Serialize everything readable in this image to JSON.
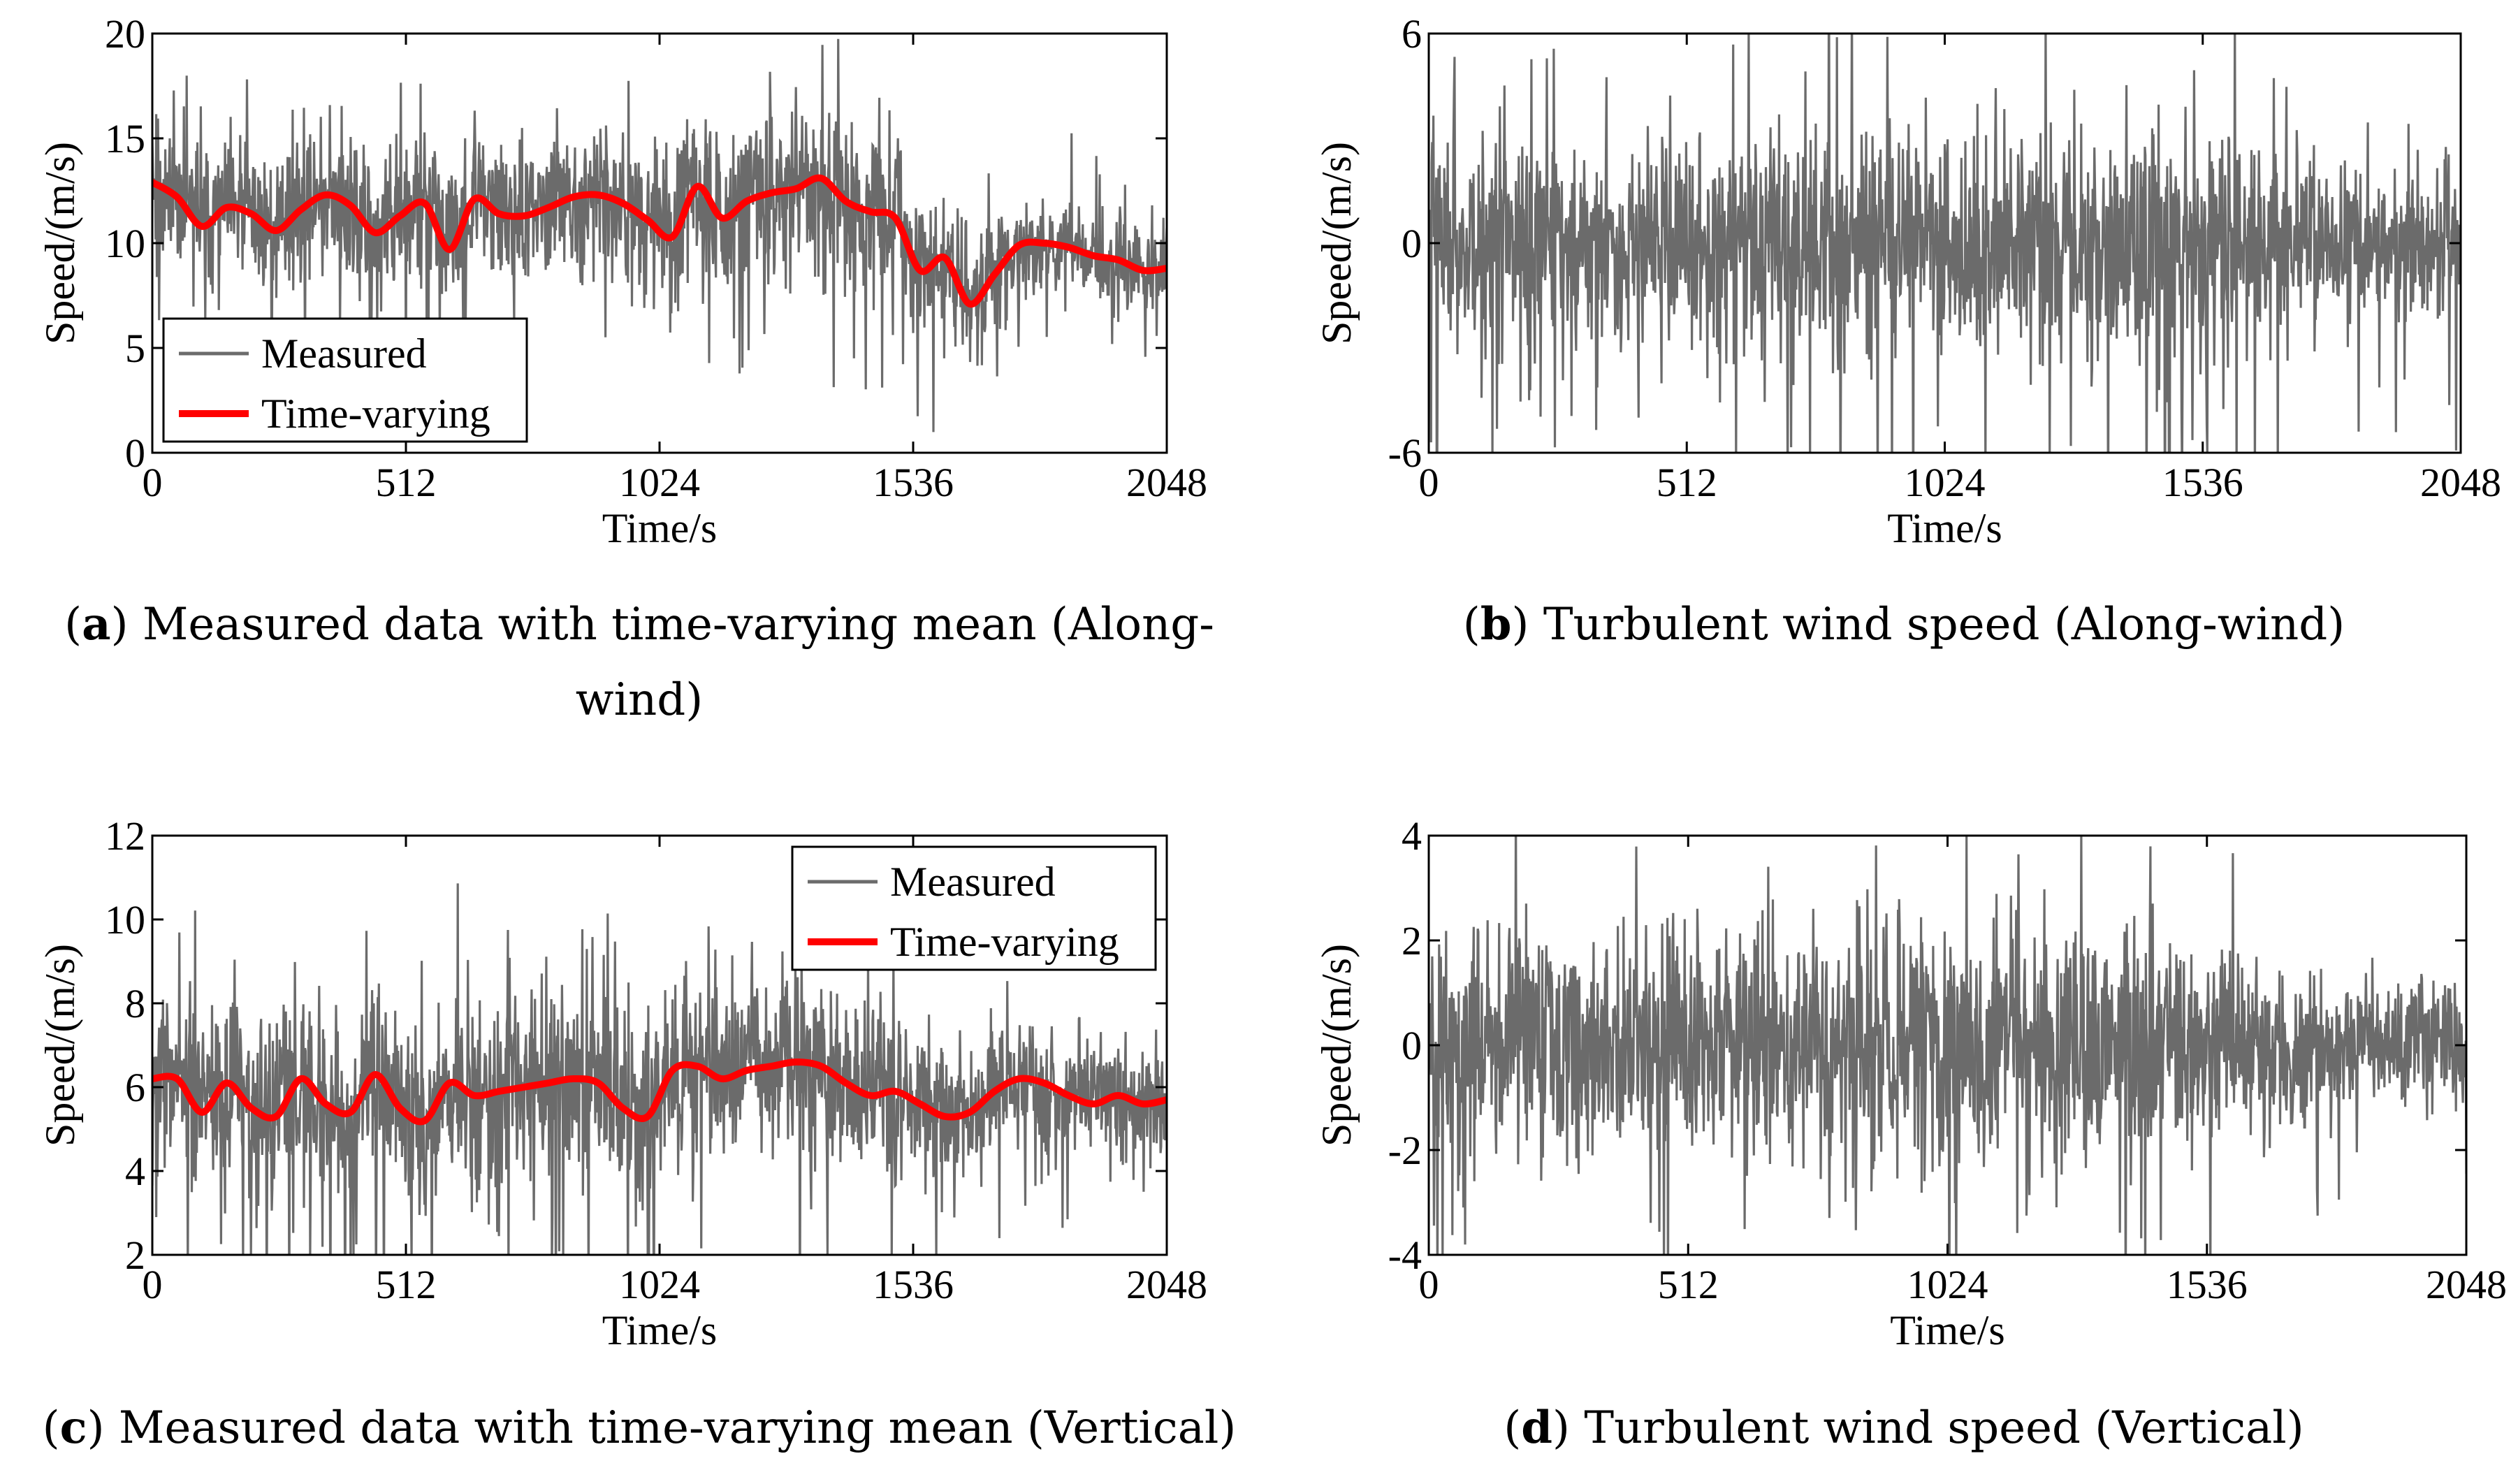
{
  "captions": {
    "a": {
      "letter": "a",
      "text": " Measured data with time-varying mean (Along-",
      "text2": "wind)"
    },
    "b": {
      "letter": "b",
      "text": " Turbulent wind speed (Along-wind)"
    },
    "c": {
      "letter": "c",
      "text": " Measured data with time-varying mean (Vertical)"
    },
    "d": {
      "letter": "d",
      "text": " Turbulent wind speed (Vertical)"
    }
  },
  "colors": {
    "measured": "#6b6b6b",
    "time_varying": "#ff0000",
    "axis": "#000000"
  },
  "chart_data": [
    {
      "id": "a",
      "type": "line",
      "xlabel": "Time/s",
      "ylabel": "Speed/(m/s)",
      "xlim": [
        0,
        2048
      ],
      "ylim": [
        0,
        20
      ],
      "xticks": [
        0,
        512,
        1024,
        1536,
        2048
      ],
      "yticks": [
        0,
        5,
        10,
        15,
        20
      ],
      "legend": {
        "position": "lower-left",
        "entries": [
          "Measured",
          "Time-varying"
        ]
      },
      "series": [
        {
          "name": "Measured",
          "kind": "noise",
          "seed": 11,
          "amp": 1.6,
          "spikes": 0.05,
          "spike_amp": 4.2,
          "envelope": [
            [
              0,
              1.1
            ],
            [
              200,
              1.0
            ],
            [
              900,
              1.0
            ],
            [
              1400,
              1.25
            ],
            [
              1750,
              0.65
            ],
            [
              2048,
              0.6
            ]
          ]
        },
        {
          "name": "Time-varying",
          "x": [
            0,
            50,
            100,
            150,
            200,
            250,
            300,
            350,
            400,
            450,
            500,
            550,
            600,
            650,
            700,
            750,
            800,
            850,
            900,
            950,
            1000,
            1050,
            1100,
            1150,
            1200,
            1250,
            1300,
            1350,
            1400,
            1450,
            1500,
            1550,
            1600,
            1650,
            1700,
            1750,
            1800,
            1850,
            1900,
            1950,
            2000,
            2048
          ],
          "y": [
            12.9,
            12.2,
            10.8,
            11.7,
            11.4,
            10.6,
            11.6,
            12.3,
            11.8,
            10.5,
            11.3,
            11.9,
            9.7,
            12.1,
            11.4,
            11.3,
            11.7,
            12.2,
            12.3,
            11.9,
            11.1,
            10.3,
            12.7,
            11.2,
            12.0,
            12.4,
            12.6,
            13.1,
            12.0,
            11.5,
            11.2,
            8.7,
            9.3,
            7.1,
            8.5,
            9.9,
            10.0,
            9.8,
            9.4,
            9.2,
            8.7,
            8.8
          ]
        }
      ]
    },
    {
      "id": "b",
      "type": "line",
      "xlabel": "Time/s",
      "ylabel": "Speed/(m/s)",
      "xlim": [
        0,
        2048
      ],
      "ylim": [
        -6,
        6
      ],
      "xticks": [
        0,
        512,
        1024,
        1536,
        2048
      ],
      "yticks": [
        -6,
        0,
        6
      ],
      "series": [
        {
          "name": "Turbulent",
          "kind": "noise",
          "seed": 23,
          "amp": 1.5,
          "spikes": 0.05,
          "spike_amp": 4.5,
          "envelope": [
            [
              0,
              1.1
            ],
            [
              250,
              0.8
            ],
            [
              900,
              1.0
            ],
            [
              1500,
              1.15
            ],
            [
              1700,
              0.7
            ],
            [
              2048,
              0.65
            ]
          ]
        }
      ]
    },
    {
      "id": "c",
      "type": "line",
      "xlabel": "Time/s",
      "ylabel": "Speed/(m/s)",
      "xlim": [
        0,
        2048
      ],
      "ylim": [
        2,
        12
      ],
      "xticks": [
        0,
        512,
        1024,
        1536,
        2048
      ],
      "yticks": [
        2,
        4,
        6,
        8,
        10,
        12
      ],
      "legend": {
        "position": "top-right",
        "entries": [
          "Measured",
          "Time-varying"
        ]
      },
      "series": [
        {
          "name": "Measured",
          "kind": "noise",
          "seed": 37,
          "amp": 1.0,
          "spikes": 0.05,
          "spike_amp": 3.0,
          "envelope": [
            [
              0,
              1.0
            ],
            [
              1300,
              1.05
            ],
            [
              1700,
              0.7
            ],
            [
              2048,
              0.6
            ]
          ]
        },
        {
          "name": "Time-varying",
          "x": [
            0,
            50,
            100,
            150,
            200,
            250,
            300,
            350,
            400,
            450,
            500,
            550,
            600,
            650,
            700,
            750,
            800,
            850,
            900,
            950,
            1000,
            1050,
            1100,
            1150,
            1200,
            1250,
            1300,
            1350,
            1400,
            1450,
            1500,
            1550,
            1600,
            1650,
            1700,
            1750,
            1800,
            1850,
            1900,
            1950,
            2000,
            2048
          ],
          "y": [
            6.2,
            6.2,
            5.4,
            6.1,
            5.5,
            5.3,
            6.2,
            5.6,
            5.4,
            6.3,
            5.5,
            5.2,
            6.1,
            5.8,
            5.9,
            6.0,
            6.1,
            6.2,
            6.1,
            5.5,
            5.3,
            6.4,
            6.5,
            6.2,
            6.4,
            6.5,
            6.6,
            6.5,
            6.1,
            5.8,
            5.9,
            5.6,
            5.3,
            5.4,
            5.9,
            6.2,
            6.1,
            5.8,
            5.6,
            5.8,
            5.6,
            5.7
          ]
        }
      ]
    },
    {
      "id": "d",
      "type": "line",
      "xlabel": "Time/s",
      "ylabel": "Speed/(m/s)",
      "xlim": [
        0,
        2048
      ],
      "ylim": [
        -4,
        4
      ],
      "xticks": [
        0,
        512,
        1024,
        1536,
        2048
      ],
      "yticks": [
        -4,
        -2,
        0,
        2,
        4
      ],
      "series": [
        {
          "name": "Turbulent",
          "kind": "noise",
          "seed": 51,
          "amp": 1.0,
          "spikes": 0.04,
          "spike_amp": 2.6,
          "envelope": [
            [
              0,
              1.0
            ],
            [
              1400,
              1.1
            ],
            [
              1700,
              0.7
            ],
            [
              2048,
              0.6
            ]
          ]
        }
      ]
    }
  ]
}
